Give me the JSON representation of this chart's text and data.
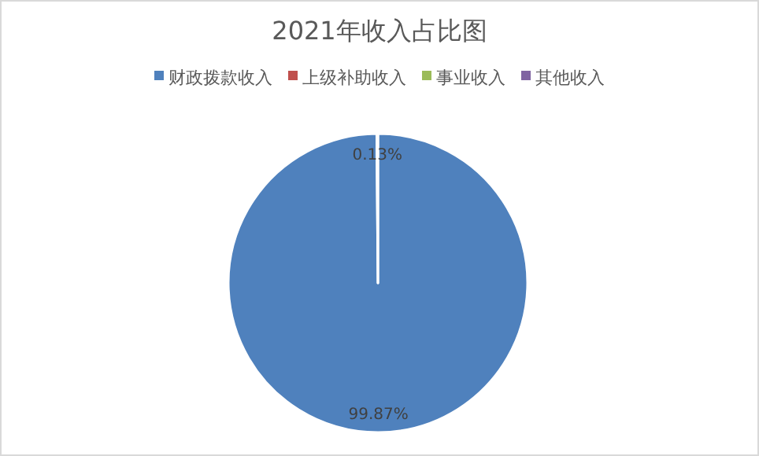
{
  "chart_data": {
    "type": "pie",
    "title": "2021年收入占比图",
    "categories": [
      "财政拨款收入",
      "上级补助收入",
      "事业收入",
      "其他收入"
    ],
    "values": [
      99.87,
      0.13,
      0,
      0
    ],
    "colors": [
      "#4f81bd",
      "#c0504d",
      "#9bbb59",
      "#8064a2"
    ],
    "value_labels": [
      "99.87%",
      "0.13%",
      null,
      null
    ],
    "legend": "top"
  }
}
